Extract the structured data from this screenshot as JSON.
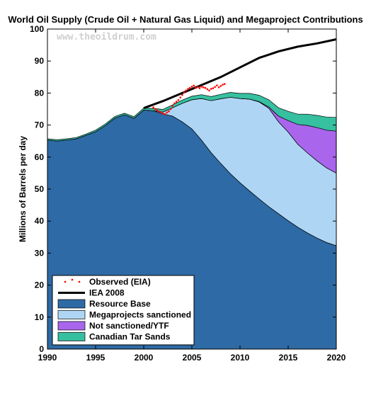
{
  "chart_data": {
    "type": "area",
    "title": "World Oil Supply (Crude Oil + Natural Gas Liquid) and Megaproject Contributions",
    "ylabel": "Millions of Barrels per day",
    "xlabel": "",
    "watermark": "www.theoildrum.com",
    "xlim": [
      1990,
      2020
    ],
    "ylim": [
      0,
      100
    ],
    "x_ticks": [
      "1990",
      "1995",
      "2000",
      "2005",
      "2010",
      "2015",
      "2020"
    ],
    "y_ticks": [
      "0",
      "10",
      "20",
      "30",
      "40",
      "50",
      "60",
      "70",
      "80",
      "90",
      "100"
    ],
    "grid": false,
    "legend_position": "bottom-left",
    "area_series": [
      {
        "name": "Resource Base",
        "color": "#2e6aa5",
        "x": [
          1990,
          1991,
          1992,
          1993,
          1994,
          1995,
          1996,
          1997,
          1998,
          1999,
          2000,
          2001,
          2002,
          2003,
          2004,
          2005,
          2006,
          2007,
          2008,
          2009,
          2010,
          2011,
          2012,
          2013,
          2014,
          2015,
          2016,
          2017,
          2018,
          2019,
          2020
        ],
        "values": [
          65.3,
          65.0,
          65.3,
          65.7,
          66.8,
          67.9,
          69.8,
          72.2,
          73.2,
          72.1,
          74.7,
          74.5,
          73.5,
          72.8,
          71.0,
          68.8,
          65.3,
          61.4,
          58.0,
          54.8,
          52.0,
          49.4,
          46.9,
          44.5,
          42.3,
          40.1,
          38.1,
          36.3,
          34.7,
          33.3,
          32.3
        ]
      },
      {
        "name": "Megaprojects sanctioned",
        "color": "#aed6f4",
        "x": [
          1990,
          1991,
          1992,
          1993,
          1994,
          1995,
          1996,
          1997,
          1998,
          1999,
          2000,
          2001,
          2002,
          2003,
          2004,
          2005,
          2006,
          2007,
          2008,
          2009,
          2010,
          2011,
          2012,
          2013,
          2014,
          2015,
          2016,
          2017,
          2018,
          2019,
          2020
        ],
        "values": [
          0,
          0,
          0,
          0,
          0,
          0,
          0,
          0,
          0,
          0,
          0,
          0,
          0.6,
          2.6,
          5.8,
          9.1,
          13.0,
          16.2,
          20.2,
          23.9,
          26.3,
          28.7,
          30.3,
          30.7,
          28.7,
          27.7,
          25.9,
          25.0,
          24.1,
          23.3,
          22.7
        ]
      },
      {
        "name": "Not sanctioned/YTF",
        "color": "#a966ec",
        "x": [
          1990,
          1991,
          1992,
          1993,
          1994,
          1995,
          1996,
          1997,
          1998,
          1999,
          2000,
          2001,
          2002,
          2003,
          2004,
          2005,
          2006,
          2007,
          2008,
          2009,
          2010,
          2011,
          2012,
          2013,
          2014,
          2015,
          2016,
          2017,
          2018,
          2019,
          2020
        ],
        "values": [
          0,
          0,
          0,
          0,
          0,
          0,
          0,
          0,
          0,
          0,
          0,
          0,
          0,
          0,
          0,
          0,
          0,
          0,
          0,
          0,
          0,
          0,
          0.1,
          0.4,
          1.8,
          3.6,
          6.2,
          8.6,
          10.4,
          11.8,
          13.1
        ]
      },
      {
        "name": "Canadian Tar Sands",
        "color": "#36c0a0",
        "x": [
          1990,
          1991,
          1992,
          1993,
          1994,
          1995,
          1996,
          1997,
          1998,
          1999,
          2000,
          2001,
          2002,
          2003,
          2004,
          2005,
          2006,
          2007,
          2008,
          2009,
          2010,
          2011,
          2012,
          2013,
          2014,
          2015,
          2016,
          2017,
          2018,
          2019,
          2020
        ],
        "values": [
          0.4,
          0.4,
          0.4,
          0.4,
          0.4,
          0.5,
          0.5,
          0.5,
          0.5,
          0.5,
          0.6,
          0.7,
          0.8,
          0.9,
          1.0,
          1.1,
          1.2,
          1.3,
          1.4,
          1.5,
          1.6,
          1.8,
          2.0,
          2.3,
          2.6,
          2.9,
          3.2,
          3.5,
          3.8,
          4.1,
          4.3
        ]
      }
    ],
    "line_series": [
      {
        "name": "IEA 2008",
        "color": "#000000",
        "x": [
          2000,
          2002,
          2004,
          2006,
          2008,
          2010,
          2012,
          2014,
          2016,
          2018,
          2020
        ],
        "values": [
          75.3,
          77.5,
          80.0,
          82.5,
          85.0,
          88.0,
          91.0,
          93.0,
          94.5,
          95.5,
          96.8
        ]
      }
    ],
    "scatter_series": [
      {
        "name": "Observed (EIA)",
        "color": "#ff0000",
        "x": [
          2001.0,
          2001.2,
          2001.4,
          2001.6,
          2001.8,
          2002.0,
          2002.2,
          2002.4,
          2002.6,
          2002.8,
          2003.0,
          2003.2,
          2003.4,
          2003.6,
          2003.8,
          2004.0,
          2004.2,
          2004.4,
          2004.6,
          2004.8,
          2005.0,
          2005.2,
          2005.4,
          2005.6,
          2005.8,
          2006.0,
          2006.2,
          2006.4,
          2006.6,
          2006.8,
          2007.0,
          2007.2,
          2007.4,
          2007.6,
          2007.8,
          2008.0,
          2008.2,
          2008.4
        ],
        "values": [
          75.5,
          75.0,
          74.6,
          74.2,
          74.0,
          73.6,
          73.4,
          73.9,
          74.3,
          75.0,
          76.0,
          76.8,
          77.3,
          77.8,
          78.6,
          79.4,
          80.2,
          80.8,
          81.3,
          81.6,
          82.0,
          82.3,
          81.6,
          81.9,
          81.5,
          82.0,
          81.8,
          81.6,
          81.2,
          80.8,
          81.3,
          81.5,
          81.9,
          82.4,
          81.8,
          82.2,
          82.6,
          82.8
        ]
      }
    ],
    "legend": [
      {
        "label": "Observed (EIA)",
        "kind": "dots",
        "color": "#ff0000"
      },
      {
        "label": "IEA 2008",
        "kind": "line",
        "color": "#000000"
      },
      {
        "label": "Resource Base",
        "kind": "patch",
        "color": "#2e6aa5"
      },
      {
        "label": "Megaprojects sanctioned",
        "kind": "patch",
        "color": "#aed6f4"
      },
      {
        "label": "Not sanctioned/YTF",
        "kind": "patch",
        "color": "#a966ec"
      },
      {
        "label": "Canadian Tar Sands",
        "kind": "patch",
        "color": "#36c0a0"
      }
    ]
  }
}
